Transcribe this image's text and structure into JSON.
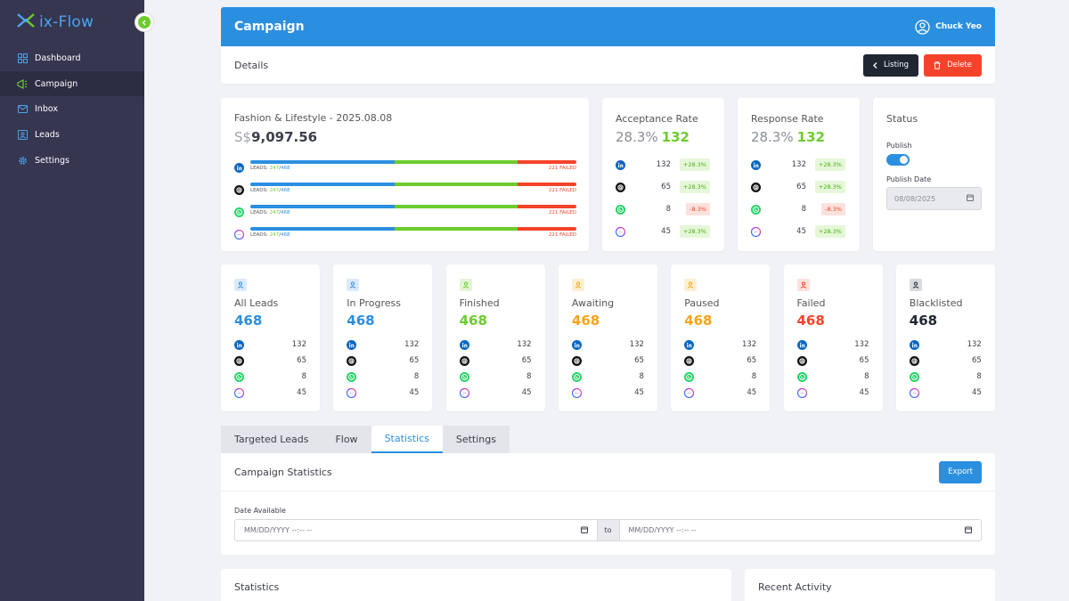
{
  "app": {
    "name": "ix-Flow"
  },
  "sidebar": {
    "items": [
      {
        "label": "Dashboard",
        "icon": "dashboard-icon"
      },
      {
        "label": "Campaign",
        "icon": "campaign-icon"
      },
      {
        "label": "Inbox",
        "icon": "inbox-icon"
      },
      {
        "label": "Leads",
        "icon": "leads-icon"
      },
      {
        "label": "Settings",
        "icon": "settings-icon"
      }
    ]
  },
  "header": {
    "title": "Campaign",
    "user": "Chuck Yeo"
  },
  "details": {
    "label": "Details",
    "listing_label": "Listing",
    "delete_label": "Delete"
  },
  "summary": {
    "name": "Fashion & Lifestyle - 2025.08.08",
    "currency": "S$",
    "amount": "9,097.56",
    "channels": [
      {
        "icon": "linkedin-icon",
        "leads_prefix": "LEADS:",
        "done": "247",
        "total": "468",
        "failed": "221 FAILED"
      },
      {
        "icon": "threads-icon",
        "leads_prefix": "LEADS:",
        "done": "247",
        "total": "468",
        "failed": "221 FAILED"
      },
      {
        "icon": "whatsapp-icon",
        "leads_prefix": "LEADS:",
        "done": "247",
        "total": "468",
        "failed": "221 FAILED"
      },
      {
        "icon": "messenger-icon",
        "leads_prefix": "LEADS:",
        "done": "247",
        "total": "468",
        "failed": "221 FAILED"
      }
    ]
  },
  "acceptance": {
    "title": "Acceptance Rate",
    "pct": "28.3%",
    "count": "132",
    "rows": [
      {
        "icon": "linkedin-icon",
        "value": "132",
        "delta": "+28.3%"
      },
      {
        "icon": "threads-icon",
        "value": "65",
        "delta": "+28.3%"
      },
      {
        "icon": "whatsapp-icon",
        "value": "8",
        "delta": "-8.3%"
      },
      {
        "icon": "messenger-icon",
        "value": "45",
        "delta": "+28.3%"
      }
    ]
  },
  "response": {
    "title": "Response Rate",
    "pct": "28.3%",
    "count": "132",
    "rows": [
      {
        "icon": "linkedin-icon",
        "value": "132",
        "delta": "+28.3%"
      },
      {
        "icon": "threads-icon",
        "value": "65",
        "delta": "+28.3%"
      },
      {
        "icon": "whatsapp-icon",
        "value": "8",
        "delta": "-8.3%"
      },
      {
        "icon": "messenger-icon",
        "value": "45",
        "delta": "+28.3%"
      }
    ]
  },
  "status": {
    "title": "Status",
    "publish_label": "Publish",
    "publish_on": true,
    "date_label": "Publish Date",
    "date_value": "08/08/2025"
  },
  "leads": [
    {
      "title": "All Leads",
      "count": "468",
      "color": "#2b8fe0",
      "icon_bg": "#dbeafb",
      "counts": [
        "132",
        "65",
        "8",
        "45"
      ]
    },
    {
      "title": "In Progress",
      "count": "468",
      "color": "#2b8fe0",
      "icon_bg": "#dbeafb",
      "counts": [
        "132",
        "65",
        "8",
        "45"
      ]
    },
    {
      "title": "Finished",
      "count": "468",
      "color": "#6ccc2e",
      "icon_bg": "#e2f5d5",
      "counts": [
        "132",
        "65",
        "8",
        "45"
      ]
    },
    {
      "title": "Awaiting",
      "count": "468",
      "color": "#f5a31a",
      "icon_bg": "#fdefd2",
      "counts": [
        "132",
        "65",
        "8",
        "45"
      ]
    },
    {
      "title": "Paused",
      "count": "468",
      "color": "#f5a31a",
      "icon_bg": "#fdefd2",
      "counts": [
        "132",
        "65",
        "8",
        "45"
      ]
    },
    {
      "title": "Failed",
      "count": "468",
      "color": "#f4432a",
      "icon_bg": "#fde1dc",
      "counts": [
        "132",
        "65",
        "8",
        "45"
      ]
    },
    {
      "title": "Blacklisted",
      "count": "468",
      "color": "#1f2733",
      "icon_bg": "#d9dbe0",
      "counts": [
        "132",
        "65",
        "8",
        "45"
      ]
    }
  ],
  "tabs": [
    {
      "label": "Targeted Leads"
    },
    {
      "label": "Flow"
    },
    {
      "label": "Statistics",
      "active": true
    },
    {
      "label": "Settings"
    }
  ],
  "stats": {
    "title": "Campaign Statistics",
    "export_label": "Export",
    "date_label": "Date Available",
    "from_placeholder": "MM/DD/YYYY --:-- --",
    "to_label": "to",
    "to_placeholder": "MM/DD/YYYY --:-- --"
  },
  "bottom": {
    "statistics_title": "Statistics",
    "activity_title": "Recent Activity"
  },
  "colors": {
    "primary": "#2b8fe0",
    "success": "#6ccc2e",
    "danger": "#f4432a",
    "sidebar": "#363651"
  }
}
